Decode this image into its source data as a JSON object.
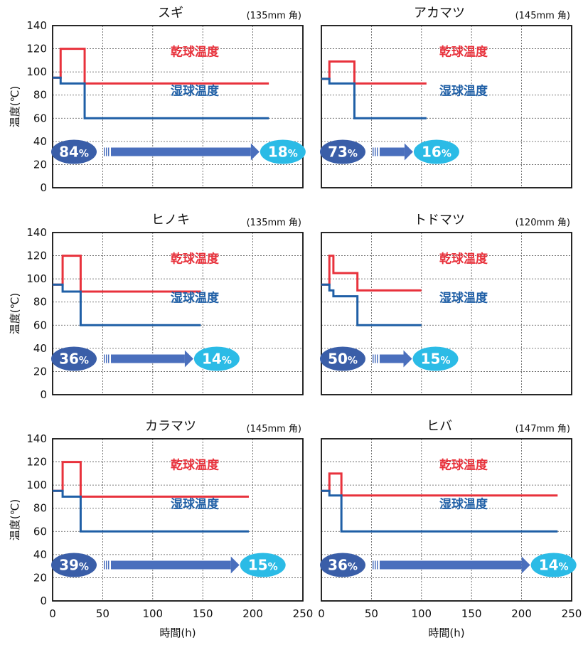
{
  "colors": {
    "dry_bulb": "#e8323c",
    "wet_bulb": "#1f5fa6",
    "moisture_start": "#3a5ea8",
    "moisture_end": "#2bbbe6",
    "arrow": "#4a6fbd",
    "grid": "#555555"
  },
  "chart_data": [
    {
      "type": "line",
      "title": "スギ",
      "subtitle": "(135mm 角)",
      "xlabel": "",
      "ylabel": "温度(℃)",
      "xlim": [
        0,
        250
      ],
      "ylim": [
        0,
        140
      ],
      "xticks": [],
      "yticks": [
        0,
        20,
        40,
        60,
        80,
        100,
        120,
        140
      ],
      "grid": true,
      "series": [
        {
          "name": "乾球温度",
          "color_key": "dry_bulb",
          "x": [
            0,
            8,
            8,
            32,
            32,
            216
          ],
          "y": [
            95,
            95,
            120,
            120,
            90,
            90
          ]
        },
        {
          "name": "湿球温度",
          "color_key": "wet_bulb",
          "x": [
            0,
            8,
            8,
            32,
            32,
            216
          ],
          "y": [
            95,
            95,
            90,
            90,
            60,
            60
          ]
        }
      ],
      "moisture": {
        "start": "84",
        "end": "18",
        "unit": "%",
        "end_x": 230
      }
    },
    {
      "type": "line",
      "title": "アカマツ",
      "subtitle": "(145mm 角)",
      "xlabel": "",
      "ylabel": "",
      "xlim": [
        0,
        250
      ],
      "ylim": [
        0,
        140
      ],
      "xticks": [],
      "yticks": [],
      "grid": true,
      "series": [
        {
          "name": "乾球温度",
          "color_key": "dry_bulb",
          "x": [
            0,
            8,
            8,
            33,
            33,
            105
          ],
          "y": [
            94,
            94,
            109,
            109,
            90,
            90
          ]
        },
        {
          "name": "湿球温度",
          "color_key": "wet_bulb",
          "x": [
            0,
            8,
            8,
            33,
            33,
            105
          ],
          "y": [
            94,
            94,
            90,
            90,
            60,
            60
          ]
        }
      ],
      "moisture": {
        "start": "73",
        "end": "16",
        "unit": "%",
        "end_x": 115
      }
    },
    {
      "type": "line",
      "title": "ヒノキ",
      "subtitle": "(135mm 角)",
      "xlabel": "",
      "ylabel": "温度(℃)",
      "xlim": [
        0,
        250
      ],
      "ylim": [
        0,
        140
      ],
      "xticks": [],
      "yticks": [
        0,
        20,
        40,
        60,
        80,
        100,
        120,
        140
      ],
      "grid": true,
      "series": [
        {
          "name": "乾球温度",
          "color_key": "dry_bulb",
          "x": [
            0,
            10,
            10,
            28,
            28,
            148
          ],
          "y": [
            95,
            95,
            120,
            120,
            89,
            89
          ]
        },
        {
          "name": "湿球温度",
          "color_key": "wet_bulb",
          "x": [
            0,
            10,
            10,
            28,
            28,
            148
          ],
          "y": [
            95,
            95,
            89,
            89,
            60,
            60
          ]
        }
      ],
      "moisture": {
        "start": "36",
        "end": "14",
        "unit": "%",
        "end_x": 164
      }
    },
    {
      "type": "line",
      "title": "トドマツ",
      "subtitle": "(120mm 角)",
      "xlabel": "",
      "ylabel": "",
      "xlim": [
        0,
        250
      ],
      "ylim": [
        0,
        140
      ],
      "xticks": [],
      "yticks": [],
      "grid": true,
      "series": [
        {
          "name": "乾球温度",
          "color_key": "dry_bulb",
          "x": [
            0,
            8,
            8,
            12,
            12,
            36,
            36,
            100
          ],
          "y": [
            95,
            95,
            120,
            120,
            105,
            105,
            90,
            90
          ]
        },
        {
          "name": "湿球温度",
          "color_key": "wet_bulb",
          "x": [
            0,
            8,
            8,
            12,
            12,
            36,
            36,
            100
          ],
          "y": [
            95,
            95,
            90,
            90,
            85,
            85,
            60,
            60
          ]
        }
      ],
      "moisture": {
        "start": "50",
        "end": "15",
        "unit": "%",
        "end_x": 114
      }
    },
    {
      "type": "line",
      "title": "カラマツ",
      "subtitle": "(145mm 角)",
      "xlabel": "時間(h)",
      "ylabel": "温度(℃)",
      "xlim": [
        0,
        250
      ],
      "ylim": [
        0,
        140
      ],
      "xticks": [
        0,
        50,
        100,
        150,
        200,
        250
      ],
      "yticks": [
        0,
        20,
        40,
        60,
        80,
        100,
        120,
        140
      ],
      "grid": true,
      "series": [
        {
          "name": "乾球温度",
          "color_key": "dry_bulb",
          "x": [
            0,
            10,
            10,
            28,
            28,
            196
          ],
          "y": [
            95,
            95,
            120,
            120,
            90,
            90
          ]
        },
        {
          "name": "湿球温度",
          "color_key": "wet_bulb",
          "x": [
            0,
            10,
            10,
            28,
            28,
            196
          ],
          "y": [
            95,
            95,
            90,
            90,
            60,
            60
          ]
        }
      ],
      "moisture": {
        "start": "39",
        "end": "15",
        "unit": "%",
        "end_x": 210
      }
    },
    {
      "type": "line",
      "title": "ヒバ",
      "subtitle": "(147mm 角)",
      "xlabel": "時間(h)",
      "ylabel": "",
      "xlim": [
        0,
        250
      ],
      "ylim": [
        0,
        140
      ],
      "xticks": [
        0,
        50,
        100,
        150,
        200,
        250
      ],
      "yticks": [],
      "grid": true,
      "series": [
        {
          "name": "乾球温度",
          "color_key": "dry_bulb",
          "x": [
            0,
            8,
            8,
            20,
            20,
            236
          ],
          "y": [
            95,
            95,
            110,
            110,
            91,
            91
          ]
        },
        {
          "name": "湿球温度",
          "color_key": "wet_bulb",
          "x": [
            0,
            8,
            8,
            20,
            20,
            236
          ],
          "y": [
            95,
            95,
            91,
            91,
            60,
            60
          ]
        }
      ],
      "moisture": {
        "start": "36",
        "end": "14",
        "unit": "%",
        "end_x": 232
      }
    }
  ]
}
